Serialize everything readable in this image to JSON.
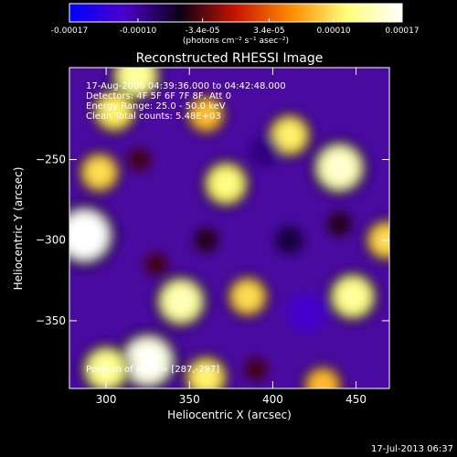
{
  "chart_data": {
    "type": "heatmap",
    "title": "Reconstructed RHESSI Image",
    "xlabel": "Heliocentric X (arcsec)",
    "ylabel": "Heliocentric Y (arcsec)",
    "xlim": [
      278,
      470
    ],
    "ylim": [
      -392,
      -193
    ],
    "x_ticks": [
      300,
      350,
      400,
      450
    ],
    "y_ticks": [
      -250,
      -300,
      -350
    ],
    "colorbar": {
      "range": [
        -0.00017,
        0.00017
      ],
      "ticks": [
        -0.00017,
        -0.0001,
        -3.4e-05,
        3.4e-05,
        0.0001,
        0.00017
      ],
      "tick_labels": [
        "-0.00017",
        "-0.00010",
        "-3.4e-05",
        "3.4e-05",
        "0.00010",
        "0.00017"
      ],
      "unit_label": "(photons cm⁻² s⁻¹ asec⁻²)",
      "colormap": [
        "#0000ff",
        "#4b00c8",
        "#0a0014",
        "#c81400",
        "#ff8c00",
        "#ffff78",
        "#ffffff"
      ]
    },
    "annotations": [
      "17-Aug-2006 04:39:36.000 to 04:42:48.000",
      "Detectors: 4F 5F 6F 7F 8F, Att 0",
      "Energy Range: 25.0 - 50.0 keV",
      "Clean     Total counts: 5.48E+03"
    ],
    "peak_label": "Position of Peak = [287,-297]",
    "peak": [
      287,
      -297
    ],
    "sources": [
      {
        "x": 287,
        "y": -297,
        "value": 0.00017
      },
      {
        "x": 318,
        "y": -198,
        "value": 0.00012
      },
      {
        "x": 296,
        "y": -258,
        "value": 9e-05
      },
      {
        "x": 372,
        "y": -265,
        "value": 0.00011
      },
      {
        "x": 345,
        "y": -338,
        "value": 0.00013
      },
      {
        "x": 325,
        "y": -375,
        "value": 0.00016
      },
      {
        "x": 300,
        "y": -380,
        "value": 0.00012
      },
      {
        "x": 440,
        "y": -255,
        "value": 0.00014
      },
      {
        "x": 448,
        "y": -335,
        "value": 0.00012
      },
      {
        "x": 385,
        "y": -335,
        "value": 9e-05
      },
      {
        "x": 410,
        "y": -235,
        "value": 0.0001
      },
      {
        "x": 430,
        "y": -390,
        "value": 8e-05
      },
      {
        "x": 360,
        "y": -222,
        "value": 8e-05
      },
      {
        "x": 305,
        "y": -220,
        "value": 0.0001
      },
      {
        "x": 468,
        "y": -300,
        "value": 9e-05
      },
      {
        "x": 360,
        "y": -385,
        "value": 0.0001
      },
      {
        "x": 420,
        "y": -345,
        "value": -0.00012
      },
      {
        "x": 395,
        "y": -245,
        "value": -9e-05
      },
      {
        "x": 410,
        "y": -300,
        "value": -7e-05
      },
      {
        "x": 360,
        "y": -300,
        "value": -5e-05
      },
      {
        "x": 330,
        "y": -315,
        "value": -4e-05
      },
      {
        "x": 440,
        "y": -290,
        "value": -5e-05
      },
      {
        "x": 320,
        "y": -250,
        "value": -4e-05
      },
      {
        "x": 390,
        "y": -380,
        "value": -4e-05
      }
    ]
  },
  "footer_timestamp": "17-Jul-2013 06:37"
}
